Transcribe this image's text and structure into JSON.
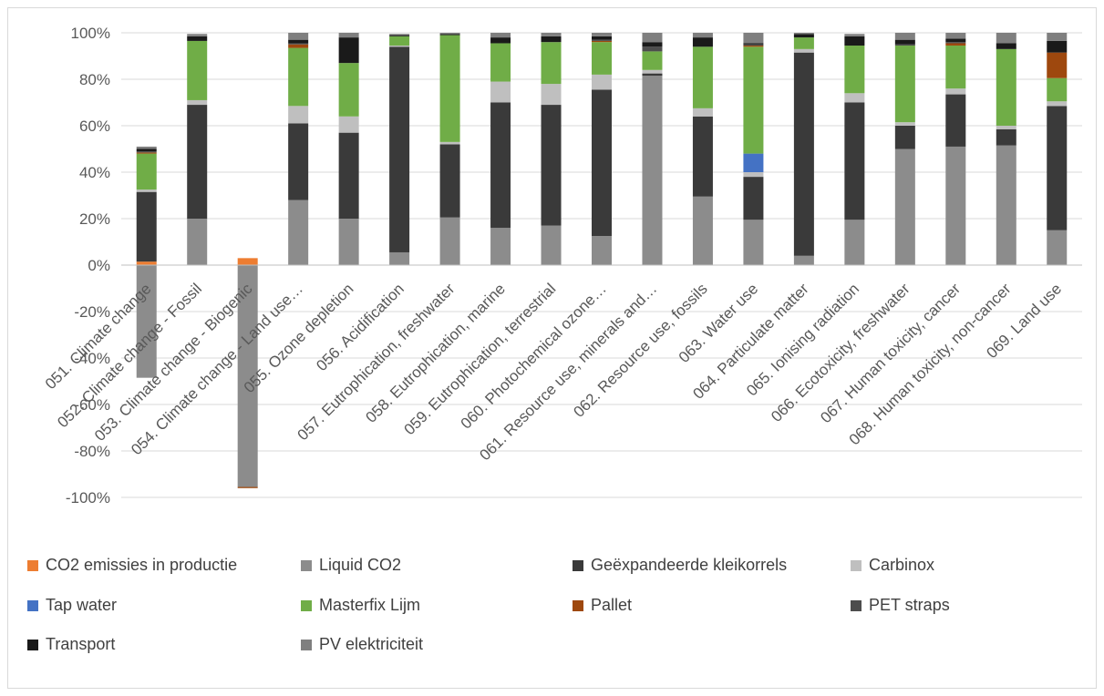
{
  "chart_data": {
    "type": "bar",
    "stacked": true,
    "stack_mode": "percent",
    "ylim": [
      -100,
      100
    ],
    "yticks": [
      -100,
      -80,
      -60,
      -40,
      -20,
      0,
      20,
      40,
      60,
      80,
      100
    ],
    "ytick_labels": [
      "-100%",
      "-80%",
      "-60%",
      "-40%",
      "-20%",
      "0%",
      "20%",
      "40%",
      "60%",
      "80%",
      "100%"
    ],
    "grid": true,
    "legend_position": "bottom",
    "categories": [
      "051. Climate change",
      "052. Climate change - Fossil",
      "053. Climate change - Biogenic",
      "054. Climate change - Land use…",
      "055. Ozone depletion",
      "056. Acidification",
      "057. Eutrophication, freshwater",
      "058. Eutrophication, marine",
      "059. Eutrophication, terrestrial",
      "060. Photochemical ozone…",
      "061. Resource use, minerals and…",
      "062. Resource use, fossils",
      "063. Water use",
      "064. Particulate matter",
      "065. Ionising radiation",
      "066. Ecotoxicity, freshwater",
      "067. Human toxicity, cancer",
      "068. Human toxicity, non-cancer",
      "069. Land use"
    ],
    "series": [
      {
        "name": "CO2 emissies in productie",
        "color": "#ED7D31",
        "values": [
          1.5,
          0,
          3,
          0,
          0,
          0,
          0,
          0,
          0,
          0,
          0,
          0,
          0,
          0,
          0,
          0,
          0,
          0,
          0
        ]
      },
      {
        "name": "Liquid CO2",
        "color": "#8C8C8C",
        "values": [
          -48.5,
          20,
          -95.5,
          28,
          20,
          5.5,
          20.5,
          16,
          17,
          12.5,
          81.5,
          29.5,
          19.5,
          4,
          19.5,
          50,
          51,
          51.5,
          15
        ]
      },
      {
        "name": "Geëxpandeerde kleikorrels",
        "color": "#3A3A3A",
        "values": [
          30,
          49,
          0,
          33,
          37,
          88.5,
          31.5,
          54,
          52,
          63,
          1,
          34.5,
          18.5,
          87.5,
          50.5,
          10,
          22.5,
          7,
          53.5
        ]
      },
      {
        "name": "Carbinox",
        "color": "#BFBFBF",
        "values": [
          1,
          2,
          0,
          7.5,
          7,
          0.5,
          1,
          9,
          9,
          6.5,
          1.5,
          3.5,
          2,
          1.5,
          4,
          1.5,
          2.5,
          1.5,
          2
        ]
      },
      {
        "name": "Tap water",
        "color": "#4472C4",
        "values": [
          0,
          0,
          0,
          0,
          0,
          0,
          0,
          0,
          0,
          0,
          0,
          0,
          8,
          0,
          0,
          0,
          0,
          0,
          0
        ]
      },
      {
        "name": "Masterfix Lijm",
        "color": "#70AD47",
        "values": [
          15.5,
          25.5,
          0,
          25,
          23,
          4,
          46,
          16.5,
          18,
          14,
          8,
          26.5,
          46,
          5,
          20.5,
          33,
          18.5,
          33,
          10
        ]
      },
      {
        "name": "Pallet",
        "color": "#9E480E",
        "values": [
          0.5,
          0,
          -0.5,
          1.5,
          0,
          0,
          0,
          0,
          0,
          0.5,
          0,
          0,
          0.5,
          0,
          0,
          0,
          1,
          0,
          11
        ]
      },
      {
        "name": "PET straps",
        "color": "#4D4D4D",
        "values": [
          0.5,
          0,
          0,
          0.5,
          0,
          0,
          0,
          0,
          0,
          0.5,
          2,
          0,
          0.5,
          0,
          0,
          0.5,
          0.5,
          0,
          0
        ]
      },
      {
        "name": "Transport",
        "color": "#1A1A1A",
        "values": [
          1,
          2,
          0,
          1.5,
          11,
          0.5,
          0.5,
          2.5,
          2.5,
          1.5,
          2,
          4,
          0.5,
          1.5,
          4,
          2,
          1.5,
          2.5,
          5
        ]
      },
      {
        "name": "PV elektriciteit",
        "color": "#7F7F7F",
        "values": [
          1,
          1,
          0,
          3,
          2,
          0.5,
          0.5,
          2,
          1.5,
          1.5,
          4,
          2,
          4.5,
          0.5,
          1,
          3,
          2.5,
          4.5,
          3.5
        ]
      }
    ]
  }
}
